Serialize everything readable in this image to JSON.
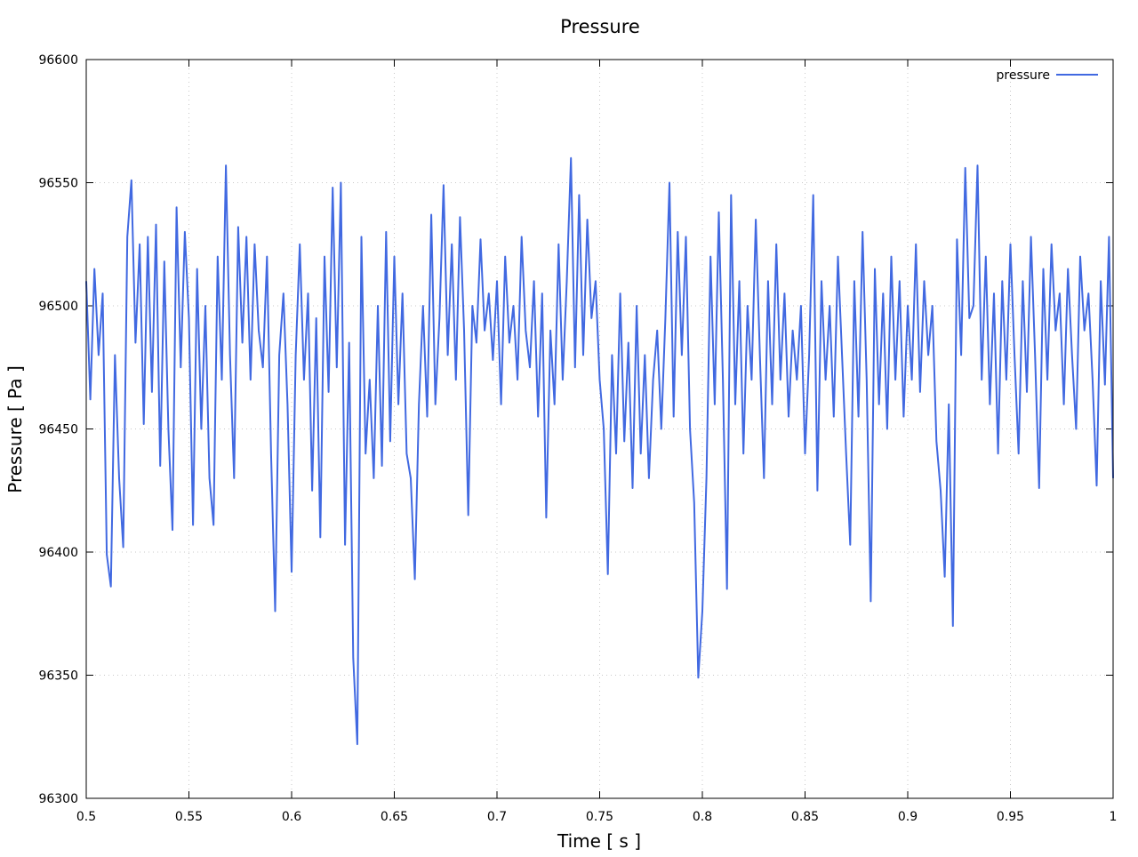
{
  "chart_data": {
    "type": "line",
    "title": "Pressure",
    "xlabel": "Time [ s ]",
    "ylabel": "Pressure [ Pa ]",
    "xlim": [
      0.5,
      1.0
    ],
    "ylim": [
      96300,
      96600
    ],
    "xticks": [
      "0.5",
      "0.55",
      "0.6",
      "0.65",
      "0.7",
      "0.75",
      "0.8",
      "0.85",
      "0.9",
      "0.95",
      "1"
    ],
    "yticks": [
      "96300",
      "96350",
      "96400",
      "96450",
      "96500",
      "96550",
      "96600"
    ],
    "grid": true,
    "legend_position": "top-right",
    "series": [
      {
        "name": "pressure",
        "color": "#4169e1",
        "x_start": 0.5,
        "x_step": 0.002,
        "values": [
          96510,
          96462,
          96515,
          96480,
          96505,
          96399,
          96386,
          96480,
          96430,
          96402,
          96528,
          96551,
          96485,
          96525,
          96452,
          96528,
          96465,
          96533,
          96435,
          96518,
          96450,
          96409,
          96540,
          96475,
          96530,
          96495,
          96411,
          96515,
          96450,
          96500,
          96430,
          96411,
          96520,
          96470,
          96557,
          96480,
          96430,
          96532,
          96485,
          96528,
          96470,
          96525,
          96490,
          96475,
          96520,
          96440,
          96376,
          96480,
          96505,
          96460,
          96392,
          96480,
          96525,
          96470,
          96505,
          96425,
          96495,
          96406,
          96520,
          96465,
          96548,
          96475,
          96550,
          96403,
          96485,
          96357,
          96322,
          96528,
          96440,
          96470,
          96430,
          96500,
          96435,
          96530,
          96445,
          96520,
          96460,
          96505,
          96440,
          96430,
          96389,
          96460,
          96500,
          96455,
          96537,
          96460,
          96495,
          96549,
          96480,
          96525,
          96470,
          96536,
          96490,
          96415,
          96500,
          96485,
          96527,
          96490,
          96505,
          96478,
          96510,
          96460,
          96520,
          96485,
          96500,
          96470,
          96528,
          96490,
          96475,
          96510,
          96455,
          96505,
          96414,
          96490,
          96460,
          96525,
          96470,
          96510,
          96560,
          96475,
          96545,
          96480,
          96535,
          96495,
          96510,
          96470,
          96450,
          96391,
          96480,
          96440,
          96505,
          96445,
          96485,
          96426,
          96500,
          96440,
          96480,
          96430,
          96470,
          96490,
          96450,
          96495,
          96550,
          96455,
          96530,
          96480,
          96528,
          96450,
          96420,
          96349,
          96376,
          96430,
          96520,
          96460,
          96538,
          96470,
          96385,
          96545,
          96460,
          96510,
          96440,
          96500,
          96470,
          96535,
          96480,
          96430,
          96510,
          96460,
          96525,
          96470,
          96505,
          96455,
          96490,
          96470,
          96500,
          96440,
          96480,
          96545,
          96425,
          96510,
          96470,
          96500,
          96455,
          96520,
          96480,
          96440,
          96403,
          96510,
          96455,
          96530,
          96470,
          96380,
          96515,
          96460,
          96505,
          96450,
          96520,
          96470,
          96510,
          96455,
          96500,
          96470,
          96525,
          96465,
          96510,
          96480,
          96500,
          96445,
          96425,
          96390,
          96460,
          96370,
          96527,
          96480,
          96556,
          96495,
          96500,
          96557,
          96470,
          96520,
          96460,
          96505,
          96440,
          96510,
          96470,
          96525,
          96480,
          96440,
          96510,
          96465,
          96528,
          96480,
          96426,
          96515,
          96470,
          96525,
          96490,
          96505,
          96460,
          96515,
          96480,
          96450,
          96520,
          96490,
          96505,
          96470,
          96427,
          96510,
          96468,
          96528,
          96430
        ]
      }
    ]
  }
}
